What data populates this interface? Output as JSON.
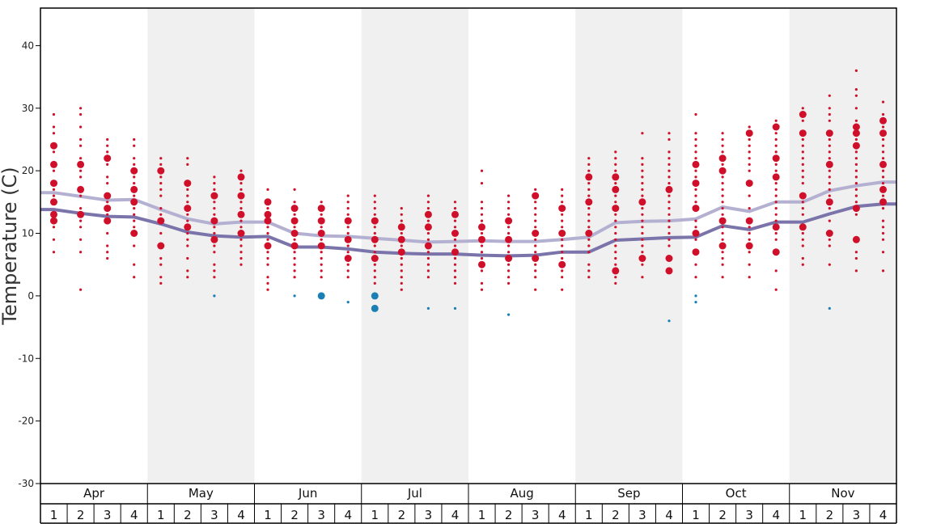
{
  "chart_data": {
    "type": "scatter",
    "title": "",
    "ylabel": "Temperature (C)",
    "xlabel": "",
    "ylim": [
      -30,
      46
    ],
    "yticks": [
      -30,
      -20,
      -10,
      0,
      10,
      20,
      30,
      40
    ],
    "months": [
      "Apr",
      "May",
      "Jun",
      "Jul",
      "Aug",
      "Sep",
      "Oct",
      "Nov"
    ],
    "week_labels": [
      "1",
      "2",
      "3",
      "4"
    ],
    "shaded_months": [
      "May",
      "Jul",
      "Sep",
      "Nov"
    ],
    "colors": {
      "warm_dots": "#d0102a",
      "cold_dots": "#1a7fb5",
      "upper_line": "#b4b0d2",
      "lower_line": "#7a74aa",
      "shade": "#f0f0f0",
      "frame": "#000000"
    },
    "series": [
      {
        "name": "upper",
        "values": [
          16.5,
          15.9,
          15.3,
          15.4,
          13.8,
          12.3,
          11.5,
          11.8,
          11.8,
          10.0,
          9.6,
          9.5,
          9.2,
          8.9,
          8.6,
          8.7,
          8.8,
          8.7,
          8.7,
          9.0,
          9.4,
          11.7,
          11.9,
          12.0,
          12.3,
          14.2,
          13.5,
          15.0,
          15.0,
          16.8,
          17.6,
          18.2
        ]
      },
      {
        "name": "lower",
        "values": [
          13.8,
          13.2,
          12.7,
          12.6,
          11.5,
          10.2,
          9.6,
          9.4,
          9.5,
          7.8,
          7.8,
          7.5,
          7.0,
          6.8,
          6.7,
          6.7,
          6.5,
          6.4,
          6.5,
          7.0,
          7.0,
          8.9,
          9.1,
          9.3,
          9.4,
          11.2,
          10.6,
          11.8,
          11.8,
          13.1,
          14.3,
          14.7
        ]
      }
    ],
    "dots": [
      {
        "week": 1,
        "temps": [
          29,
          27,
          26,
          24,
          23,
          21,
          20,
          18,
          17,
          16,
          15,
          13,
          12,
          11,
          9,
          7
        ],
        "big": [
          12,
          13,
          15,
          18,
          21,
          24
        ]
      },
      {
        "week": 2,
        "temps": [
          30,
          29,
          27,
          25,
          24,
          22,
          21,
          20,
          19,
          17,
          16,
          14,
          13,
          12,
          11,
          9,
          7,
          1
        ],
        "big": [
          13,
          17,
          21
        ]
      },
      {
        "week": 3,
        "temps": [
          25,
          24,
          23,
          22,
          21,
          19,
          18,
          16,
          15,
          14,
          13,
          12,
          10,
          8,
          7,
          6
        ],
        "big": [
          12,
          14,
          16,
          22
        ]
      },
      {
        "week": 4,
        "temps": [
          25,
          24,
          22,
          21,
          20,
          19,
          18,
          17,
          16,
          15,
          14,
          13,
          12,
          11,
          10,
          8,
          5,
          3
        ],
        "big": [
          10,
          15,
          17,
          20
        ]
      },
      {
        "week": 5,
        "temps": [
          22,
          21,
          20,
          19,
          18,
          17,
          16,
          14,
          13,
          12,
          10,
          8,
          6,
          5,
          3,
          2
        ],
        "big": [
          8,
          12,
          20
        ]
      },
      {
        "week": 6,
        "temps": [
          22,
          21,
          18,
          17,
          16,
          15,
          14,
          13,
          12,
          11,
          10,
          9,
          8,
          6,
          4,
          3
        ],
        "big": [
          11,
          14,
          18
        ]
      },
      {
        "week": 7,
        "temps": [
          19,
          18,
          17,
          16,
          15,
          14,
          13,
          12,
          11,
          10,
          9,
          8,
          7,
          5,
          4,
          3
        ],
        "big": [
          9,
          12,
          16
        ]
      },
      {
        "week": 8,
        "temps": [
          20,
          19,
          18,
          17,
          16,
          15,
          14,
          13,
          12,
          11,
          10,
          9,
          8,
          7,
          6,
          5
        ],
        "big": [
          10,
          13,
          16,
          19
        ]
      },
      {
        "week": 9,
        "temps": [
          17,
          15,
          14,
          13,
          12,
          11,
          10,
          9,
          8,
          7,
          6,
          5,
          3,
          2,
          1
        ],
        "big": [
          8,
          12,
          13,
          15
        ]
      },
      {
        "week": 10,
        "temps": [
          17,
          15,
          14,
          13,
          12,
          11,
          10,
          9,
          8,
          7,
          6,
          5,
          4,
          3
        ],
        "big": [
          8,
          10,
          12,
          14
        ]
      },
      {
        "week": 11,
        "temps": [
          15,
          14,
          13,
          12,
          11,
          10,
          9,
          8,
          7,
          6,
          5,
          4,
          3
        ],
        "big": [
          8,
          10,
          12,
          14
        ]
      },
      {
        "week": 12,
        "temps": [
          16,
          15,
          14,
          13,
          12,
          11,
          10,
          9,
          8,
          7,
          6,
          5,
          4,
          3
        ],
        "big": [
          6,
          9,
          12
        ]
      },
      {
        "week": 13,
        "temps": [
          16,
          15,
          14,
          13,
          12,
          11,
          10,
          9,
          8,
          7,
          6,
          5,
          4,
          3,
          2
        ],
        "big": [
          6,
          9,
          12
        ]
      },
      {
        "week": 14,
        "temps": [
          14,
          13,
          12,
          11,
          10,
          9,
          8,
          7,
          6,
          5,
          4,
          3,
          2,
          1
        ],
        "big": [
          7,
          9,
          11
        ]
      },
      {
        "week": 15,
        "temps": [
          16,
          15,
          14,
          13,
          12,
          11,
          10,
          9,
          8,
          7,
          6,
          5,
          4,
          3
        ],
        "big": [
          8,
          11,
          13
        ]
      },
      {
        "week": 16,
        "temps": [
          15,
          14,
          13,
          12,
          11,
          10,
          9,
          8,
          7,
          6,
          5,
          4,
          3,
          2
        ],
        "big": [
          7,
          10,
          13
        ]
      },
      {
        "week": 17,
        "temps": [
          20,
          18,
          15,
          14,
          13,
          12,
          11,
          10,
          9,
          8,
          7,
          6,
          5,
          4,
          2,
          1
        ],
        "big": [
          5,
          9,
          11
        ]
      },
      {
        "week": 18,
        "temps": [
          16,
          15,
          14,
          13,
          12,
          11,
          10,
          9,
          8,
          7,
          6,
          5,
          4,
          3,
          2
        ],
        "big": [
          6,
          9,
          12
        ]
      },
      {
        "week": 19,
        "temps": [
          17,
          16,
          15,
          14,
          13,
          12,
          11,
          10,
          9,
          8,
          7,
          6,
          5,
          4,
          3,
          1
        ],
        "big": [
          6,
          10,
          16
        ]
      },
      {
        "week": 20,
        "temps": [
          17,
          16,
          15,
          14,
          13,
          12,
          11,
          10,
          9,
          8,
          7,
          6,
          5,
          4,
          3,
          1
        ],
        "big": [
          5,
          10,
          14
        ]
      },
      {
        "week": 21,
        "temps": [
          22,
          21,
          20,
          19,
          18,
          17,
          16,
          15,
          14,
          13,
          12,
          11,
          10,
          9,
          8,
          7,
          5,
          4,
          3
        ],
        "big": [
          10,
          15,
          19
        ]
      },
      {
        "week": 22,
        "temps": [
          23,
          22,
          21,
          20,
          19,
          18,
          17,
          16,
          15,
          14,
          13,
          12,
          11,
          10,
          9,
          8,
          7,
          6,
          5,
          4,
          3,
          2
        ],
        "big": [
          4,
          14,
          17,
          19
        ]
      },
      {
        "week": 23,
        "temps": [
          26,
          22,
          21,
          20,
          19,
          18,
          17,
          16,
          15,
          14,
          13,
          12,
          11,
          10,
          9,
          8,
          7,
          6,
          5,
          3
        ],
        "big": [
          6,
          15
        ]
      },
      {
        "week": 24,
        "temps": [
          26,
          25,
          23,
          22,
          21,
          20,
          19,
          18,
          17,
          16,
          15,
          14,
          13,
          12,
          11,
          10,
          9,
          8,
          6,
          4
        ],
        "big": [
          4,
          6,
          17
        ]
      },
      {
        "week": 25,
        "temps": [
          29,
          26,
          25,
          24,
          23,
          22,
          21,
          20,
          19,
          18,
          17,
          16,
          15,
          14,
          12,
          11,
          10,
          9,
          7,
          5,
          3
        ],
        "big": [
          7,
          10,
          14,
          18,
          21
        ]
      },
      {
        "week": 26,
        "temps": [
          26,
          25,
          24,
          23,
          22,
          21,
          20,
          19,
          18,
          17,
          16,
          15,
          14,
          13,
          12,
          11,
          10,
          9,
          8,
          7,
          6,
          5,
          3
        ],
        "big": [
          8,
          12,
          20,
          22
        ]
      },
      {
        "week": 27,
        "temps": [
          27,
          26,
          25,
          24,
          23,
          22,
          21,
          20,
          18,
          16,
          14,
          12,
          11,
          10,
          9,
          8,
          7,
          5,
          3
        ],
        "big": [
          8,
          12,
          18,
          26
        ]
      },
      {
        "week": 28,
        "temps": [
          28,
          27,
          26,
          25,
          24,
          23,
          22,
          21,
          20,
          19,
          18,
          17,
          16,
          15,
          14,
          13,
          12,
          11,
          10,
          9,
          7,
          4,
          1
        ],
        "big": [
          7,
          11,
          19,
          22,
          27
        ]
      },
      {
        "week": 29,
        "temps": [
          30,
          29,
          28,
          26,
          25,
          24,
          23,
          22,
          21,
          20,
          19,
          18,
          16,
          15,
          14,
          13,
          11,
          10,
          9,
          8,
          6,
          5
        ],
        "big": [
          11,
          16,
          26,
          29
        ]
      },
      {
        "week": 30,
        "temps": [
          32,
          30,
          29,
          28,
          26,
          25,
          24,
          23,
          22,
          21,
          20,
          19,
          18,
          17,
          16,
          15,
          14,
          12,
          10,
          9,
          8,
          5
        ],
        "big": [
          10,
          15,
          21,
          26
        ]
      },
      {
        "week": 31,
        "temps": [
          36,
          33,
          32,
          30,
          28,
          27,
          26,
          25,
          24,
          23,
          22,
          21,
          20,
          19,
          18,
          17,
          16,
          15,
          14,
          13,
          9,
          7,
          6,
          4
        ],
        "big": [
          9,
          14,
          24,
          26,
          27
        ]
      },
      {
        "week": 32,
        "temps": [
          31,
          29,
          28,
          27,
          26,
          25,
          24,
          23,
          22,
          21,
          20,
          19,
          18,
          17,
          16,
          15,
          14,
          12,
          11,
          10,
          9,
          7,
          4
        ],
        "big": [
          15,
          17,
          21,
          26,
          28
        ]
      }
    ],
    "cold_dots": [
      {
        "week": 7,
        "temps": [
          0
        ],
        "big": []
      },
      {
        "week": 10,
        "temps": [
          0
        ],
        "big": []
      },
      {
        "week": 11,
        "temps": [
          0
        ],
        "big": [
          0
        ]
      },
      {
        "week": 12,
        "temps": [
          -1
        ],
        "big": []
      },
      {
        "week": 13,
        "temps": [
          0,
          -2
        ],
        "big": [
          0,
          -2
        ]
      },
      {
        "week": 15,
        "temps": [
          -2
        ],
        "big": []
      },
      {
        "week": 16,
        "temps": [
          -2
        ],
        "big": []
      },
      {
        "week": 18,
        "temps": [
          -3
        ],
        "big": []
      },
      {
        "week": 24,
        "temps": [
          -4
        ],
        "big": []
      },
      {
        "week": 25,
        "temps": [
          0,
          -1
        ],
        "big": []
      },
      {
        "week": 30,
        "temps": [
          -2
        ],
        "big": []
      }
    ]
  }
}
